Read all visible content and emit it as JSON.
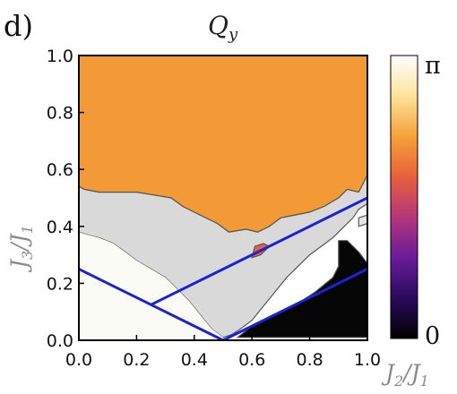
{
  "chart_data": {
    "type": "heatmap",
    "panel_label": "d)",
    "title": "Q",
    "title_subscript": "y",
    "xlabel": "J",
    "xlabel_parts": [
      "J",
      "2",
      "/J",
      "1"
    ],
    "ylabel_parts": [
      "J",
      "3",
      "/J",
      "1"
    ],
    "xlim": [
      0.0,
      1.0
    ],
    "ylim": [
      0.0,
      1.0
    ],
    "x_ticks": [
      "0.0",
      "0.2",
      "0.4",
      "0.6",
      "0.8",
      "1.0"
    ],
    "y_ticks": [
      "0.0",
      "0.2",
      "0.4",
      "0.6",
      "0.8",
      "1.0"
    ],
    "colorbar": {
      "min_label": "0",
      "max_label": "π",
      "colors": [
        "#000000",
        "#2a0a5e",
        "#6a1b9a",
        "#b5367a",
        "#e8603a",
        "#f6a13a",
        "#fde39a",
        "#ffffff"
      ]
    },
    "regions": [
      {
        "name": "orange",
        "color": "#f39a37",
        "polygon": [
          [
            0.0,
            1.0
          ],
          [
            1.0,
            1.0
          ],
          [
            1.0,
            0.58
          ],
          [
            0.97,
            0.52
          ],
          [
            0.93,
            0.53
          ],
          [
            0.9,
            0.5
          ],
          [
            0.85,
            0.47
          ],
          [
            0.8,
            0.45
          ],
          [
            0.75,
            0.44
          ],
          [
            0.7,
            0.43
          ],
          [
            0.66,
            0.4
          ],
          [
            0.62,
            0.38
          ],
          [
            0.58,
            0.39
          ],
          [
            0.52,
            0.38
          ],
          [
            0.48,
            0.41
          ],
          [
            0.42,
            0.44
          ],
          [
            0.36,
            0.47
          ],
          [
            0.32,
            0.5
          ],
          [
            0.26,
            0.51
          ],
          [
            0.2,
            0.52
          ],
          [
            0.13,
            0.52
          ],
          [
            0.07,
            0.52
          ],
          [
            0.02,
            0.53
          ],
          [
            0.0,
            0.54
          ]
        ]
      },
      {
        "name": "gray",
        "color": "#d9d9d9",
        "polygon": [
          [
            0.0,
            0.54
          ],
          [
            0.02,
            0.53
          ],
          [
            0.07,
            0.52
          ],
          [
            0.13,
            0.52
          ],
          [
            0.2,
            0.52
          ],
          [
            0.26,
            0.51
          ],
          [
            0.32,
            0.5
          ],
          [
            0.36,
            0.47
          ],
          [
            0.42,
            0.44
          ],
          [
            0.48,
            0.41
          ],
          [
            0.52,
            0.38
          ],
          [
            0.58,
            0.39
          ],
          [
            0.62,
            0.38
          ],
          [
            0.66,
            0.4
          ],
          [
            0.7,
            0.43
          ],
          [
            0.75,
            0.44
          ],
          [
            0.8,
            0.45
          ],
          [
            0.85,
            0.47
          ],
          [
            0.9,
            0.5
          ],
          [
            0.93,
            0.53
          ],
          [
            0.97,
            0.52
          ],
          [
            1.0,
            0.58
          ],
          [
            1.0,
            0.48
          ],
          [
            0.97,
            0.46
          ],
          [
            0.95,
            0.43
          ],
          [
            0.92,
            0.4
          ],
          [
            0.88,
            0.36
          ],
          [
            0.84,
            0.33
          ],
          [
            0.8,
            0.3
          ],
          [
            0.76,
            0.26
          ],
          [
            0.72,
            0.22
          ],
          [
            0.68,
            0.17
          ],
          [
            0.64,
            0.12
          ],
          [
            0.6,
            0.07
          ],
          [
            0.56,
            0.04
          ],
          [
            0.53,
            0.02
          ],
          [
            0.5,
            0.01
          ],
          [
            0.46,
            0.04
          ],
          [
            0.42,
            0.09
          ],
          [
            0.38,
            0.14
          ],
          [
            0.34,
            0.18
          ],
          [
            0.3,
            0.22
          ],
          [
            0.25,
            0.25
          ],
          [
            0.2,
            0.28
          ],
          [
            0.16,
            0.31
          ],
          [
            0.12,
            0.34
          ],
          [
            0.07,
            0.36
          ],
          [
            0.03,
            0.37
          ],
          [
            0.0,
            0.38
          ]
        ]
      },
      {
        "name": "black",
        "color": "#060606",
        "polygon": [
          [
            0.55,
            0.01
          ],
          [
            0.6,
            0.05
          ],
          [
            0.68,
            0.09
          ],
          [
            0.76,
            0.13
          ],
          [
            0.82,
            0.17
          ],
          [
            0.88,
            0.22
          ],
          [
            0.9,
            0.26
          ],
          [
            0.9,
            0.35
          ],
          [
            0.93,
            0.35
          ],
          [
            0.97,
            0.31
          ],
          [
            1.0,
            0.27
          ],
          [
            1.0,
            0.01
          ]
        ]
      },
      {
        "name": "white",
        "color": "#fbfbf6",
        "polygon": [
          [
            0.0,
            0.0
          ],
          [
            0.0,
            0.38
          ],
          [
            0.03,
            0.37
          ],
          [
            0.07,
            0.36
          ],
          [
            0.12,
            0.34
          ],
          [
            0.16,
            0.31
          ],
          [
            0.2,
            0.28
          ],
          [
            0.25,
            0.25
          ],
          [
            0.3,
            0.22
          ],
          [
            0.34,
            0.18
          ],
          [
            0.38,
            0.14
          ],
          [
            0.42,
            0.09
          ],
          [
            0.46,
            0.04
          ],
          [
            0.5,
            0.01
          ],
          [
            0.5,
            0.0
          ]
        ]
      },
      {
        "name": "orange-spot",
        "color": "#e8603a",
        "polygon": [
          [
            0.6,
            0.29
          ],
          [
            0.63,
            0.3
          ],
          [
            0.66,
            0.33
          ],
          [
            0.64,
            0.34
          ],
          [
            0.61,
            0.33
          ]
        ]
      },
      {
        "name": "gray-spot",
        "color": "#e6e6e6",
        "polygon": [
          [
            0.97,
            0.4
          ],
          [
            1.0,
            0.41
          ],
          [
            1.0,
            0.44
          ],
          [
            0.97,
            0.43
          ]
        ]
      }
    ],
    "lines": [
      {
        "name": "v-left",
        "color": "#1a22d6",
        "points": [
          [
            0.0,
            0.25
          ],
          [
            0.5,
            0.0
          ]
        ]
      },
      {
        "name": "v-right",
        "color": "#1a22d6",
        "points": [
          [
            0.5,
            0.0
          ],
          [
            1.0,
            0.25
          ]
        ]
      },
      {
        "name": "upper-line",
        "color": "#1a22d6",
        "points": [
          [
            0.25,
            0.125
          ],
          [
            1.0,
            0.5
          ]
        ]
      }
    ]
  }
}
